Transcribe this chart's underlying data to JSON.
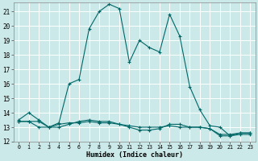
{
  "xlabel": "Humidex (Indice chaleur)",
  "background_color": "#cce9e9",
  "grid_color": "#ffffff",
  "line_color": "#006666",
  "xlim": [
    -0.5,
    23.5
  ],
  "ylim": [
    12,
    21.6
  ],
  "yticks": [
    12,
    13,
    14,
    15,
    16,
    17,
    18,
    19,
    20,
    21
  ],
  "xtick_labels": [
    "0",
    "1",
    "2",
    "3",
    "4",
    "5",
    "6",
    "7",
    "8",
    "9",
    "10",
    "11",
    "12",
    "13",
    "14",
    "15",
    "16",
    "17",
    "18",
    "19",
    "20",
    "21",
    "22",
    "23"
  ],
  "series1_x": [
    0,
    1,
    2,
    3,
    4,
    5,
    6,
    7,
    8,
    9,
    10,
    11,
    12,
    13,
    14,
    15,
    16,
    17,
    18,
    19,
    20,
    21,
    22,
    23
  ],
  "series1_y": [
    13.5,
    14.0,
    13.5,
    13.0,
    13.3,
    16.0,
    16.3,
    19.8,
    21.0,
    21.5,
    21.2,
    17.5,
    19.0,
    18.5,
    18.2,
    20.8,
    19.3,
    15.8,
    14.2,
    13.1,
    13.0,
    12.4,
    12.6,
    12.6
  ],
  "series2_x": [
    0,
    1,
    2,
    3,
    4,
    5,
    6,
    7,
    8,
    9,
    10,
    11,
    12,
    13,
    14,
    15,
    16,
    17,
    18,
    19,
    20,
    21,
    22,
    23
  ],
  "series2_y": [
    13.4,
    13.4,
    13.0,
    13.0,
    13.2,
    13.3,
    13.3,
    13.4,
    13.3,
    13.3,
    13.2,
    13.1,
    13.0,
    13.0,
    13.0,
    13.1,
    13.0,
    13.0,
    13.0,
    12.9,
    12.5,
    12.5,
    12.6,
    12.6
  ],
  "series3_x": [
    0,
    1,
    2,
    3,
    4,
    5,
    6,
    7,
    8,
    9,
    10,
    11,
    12,
    13,
    14,
    15,
    16,
    17,
    18,
    19,
    20,
    21,
    22,
    23
  ],
  "series3_y": [
    13.4,
    13.4,
    13.4,
    13.0,
    13.0,
    13.2,
    13.4,
    13.5,
    13.4,
    13.4,
    13.2,
    13.0,
    12.8,
    12.8,
    12.9,
    13.2,
    13.2,
    13.0,
    13.0,
    12.9,
    12.4,
    12.4,
    12.5,
    12.5
  ]
}
